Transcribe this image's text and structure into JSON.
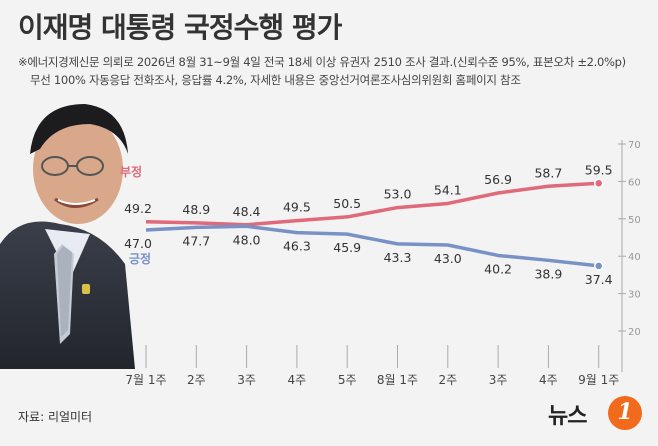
{
  "title": "이재명 대통령 국정수행 평가",
  "note_line1": "※에너지경제신문 의뢰로 2026년 8월 31~9월 4일 전국 18세 이상 유권자 2510 조사 결과.(신뢰수준 95%, 표본오차 ±2.0%p)",
  "note_line2": "무선 100% 자동응답 전화조사, 응답률 4.2%, 자세한 내용은 중앙선거여론조사심의위원회 홈페이지 참조",
  "source": "자료: 리얼미터",
  "logo": {
    "text": "뉴스",
    "badge": "1"
  },
  "colors": {
    "negative": "#e0697a",
    "positive": "#7892c6",
    "axis": "#aaaaaa"
  },
  "chart_data": {
    "type": "line",
    "categories": [
      "7월 1주",
      "2주",
      "3주",
      "4주",
      "5주",
      "8월 1주",
      "2주",
      "3주",
      "4주",
      "9월 1주"
    ],
    "series": [
      {
        "name": "부정",
        "values": [
          49.2,
          48.9,
          48.4,
          49.5,
          50.5,
          53.0,
          54.1,
          56.9,
          58.7,
          59.5
        ]
      },
      {
        "name": "긍정",
        "values": [
          47.0,
          47.7,
          48.0,
          46.3,
          45.9,
          43.3,
          43.0,
          40.2,
          38.9,
          37.4
        ]
      }
    ],
    "value_labels": {
      "부정": [
        "49.2",
        "48.9",
        "48.4",
        "49.5",
        "50.5",
        "53.0",
        "54.1",
        "56.9",
        "58.7",
        "59.5"
      ],
      "긍정": [
        "47.0",
        "47.7",
        "48.0",
        "46.3",
        "45.9",
        "43.3",
        "43.0",
        "40.2",
        "38.9",
        "37.4"
      ]
    },
    "y_ticks": [
      "70",
      "60",
      "50",
      "40",
      "30",
      "20"
    ],
    "ylim": [
      15,
      75
    ],
    "axis_position": "right",
    "grid": false
  }
}
